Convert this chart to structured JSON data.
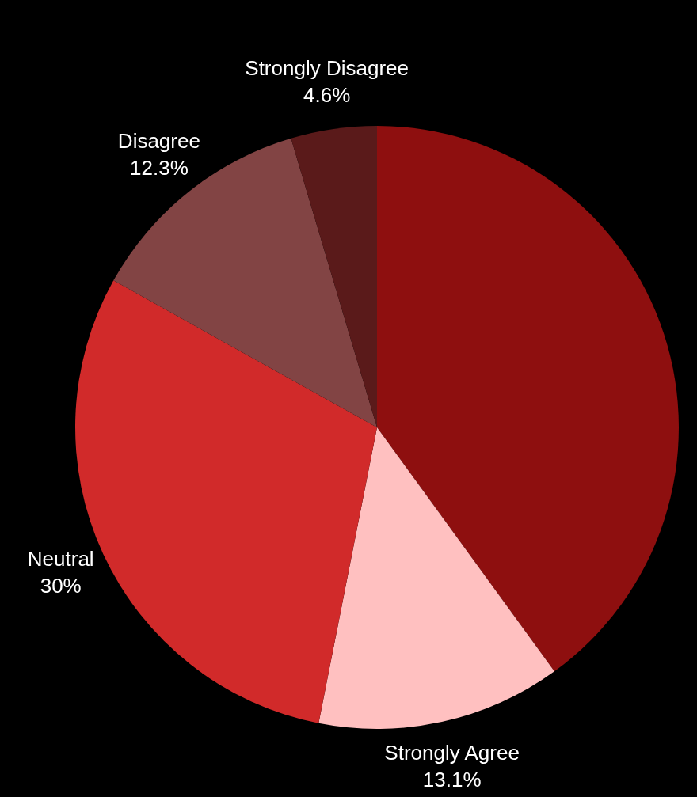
{
  "chart_data": {
    "type": "pie",
    "categories": [
      null,
      "Strongly Agree",
      "Neutral",
      "Disagree",
      "Strongly Disagree"
    ],
    "values": [
      40,
      13.1,
      30,
      12.3,
      4.6
    ],
    "value_labels": [
      null,
      "13.1%",
      "30%",
      "12.3%",
      "4.6%"
    ],
    "colors": [
      "#8e0f0f",
      "#ffc0c0",
      "#d12a2a",
      "#824444",
      "#5a1a1a"
    ]
  }
}
